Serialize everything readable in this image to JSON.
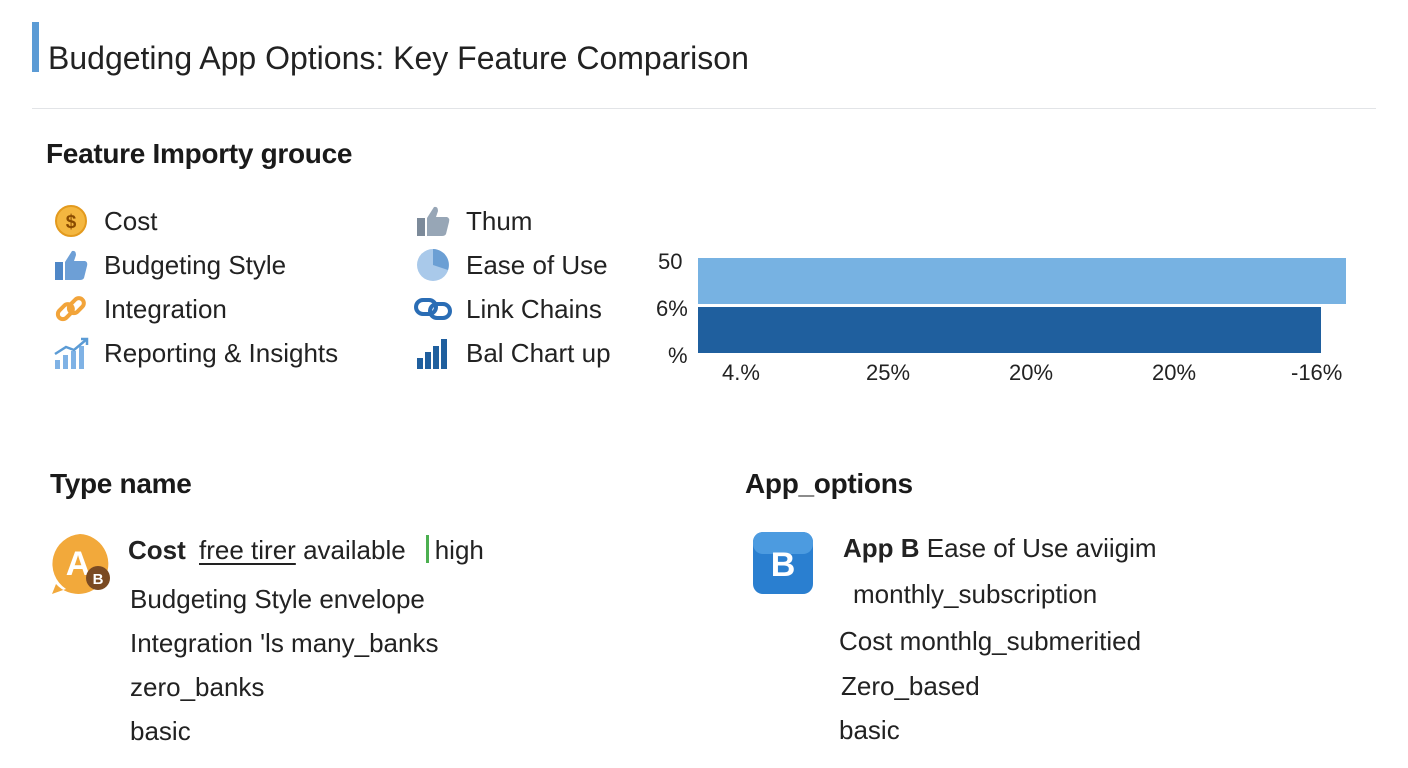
{
  "header": {
    "title": "Budgeting App Options: Key Feature Comparison"
  },
  "legend": {
    "title": "Feature Importy grouce",
    "left_items": [
      {
        "icon": "dollar-coin-icon",
        "label": "Cost"
      },
      {
        "icon": "thumbs-up-icon",
        "label": "Budgeting Style"
      },
      {
        "icon": "link-icon",
        "label": "Integration"
      },
      {
        "icon": "rising-chart-icon",
        "label": "Reporting & Insights"
      }
    ],
    "right_items": [
      {
        "icon": "thumbs-up-icon",
        "label": "Thum"
      },
      {
        "icon": "pie-chart-icon",
        "label": "Ease of Use"
      },
      {
        "icon": "chain-link-icon",
        "label": "Link Chains"
      },
      {
        "icon": "bar-chart-icon",
        "label": "Bal Chart up"
      }
    ]
  },
  "chart_data": {
    "type": "bar",
    "orientation": "horizontal",
    "y_tick_labels": [
      "50",
      "6%",
      "%"
    ],
    "x_tick_labels": [
      "4.%",
      "25%",
      "20%",
      "20%",
      "-16%"
    ],
    "bar_lengths_fraction": [
      1.0,
      0.961
    ],
    "colors": [
      "#77b2e2",
      "#1f5f9e"
    ]
  },
  "type_section": {
    "title": "Type name",
    "avatar": {
      "letter": "A",
      "badge": "B"
    },
    "line1": {
      "bold": "Cost",
      "underlined": "free tirer",
      "rest": "available",
      "tag": "high"
    },
    "lines": [
      "Budgeting Style envelope",
      "Integration 'ls many_banks",
      "zero_banks",
      "basic"
    ]
  },
  "app_section": {
    "title": "App_options",
    "avatar": {
      "letter": "B"
    },
    "line1": {
      "bold": "App B",
      "rest": "Ease of Use aviigim"
    },
    "lines": [
      "monthly_subscription",
      "Cost monthlg_submeritied",
      "Zero_based",
      "basic"
    ]
  },
  "colors": {
    "accent": "#5b9bd5",
    "bar_light": "#77b2e2",
    "bar_dark": "#1f5f9e",
    "avatar_a": "#f0a830",
    "avatar_b": "#2a7fd0"
  }
}
